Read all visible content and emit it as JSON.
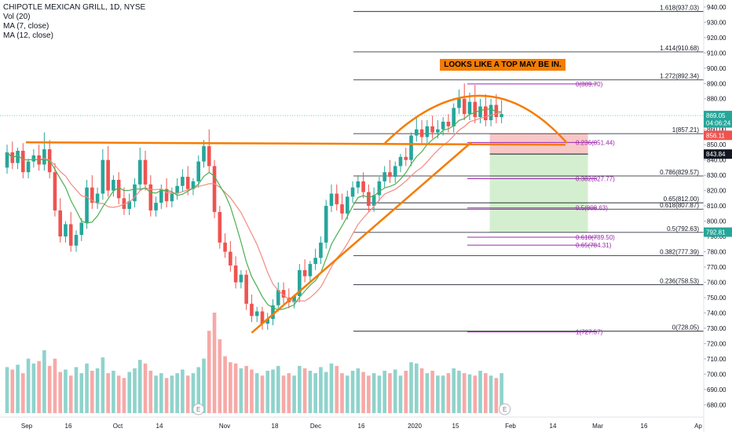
{
  "header": {
    "symbol": "CHIPOTLE MEXICAN GRILL, 1D, NYSE",
    "indicators": [
      "Vol (20)",
      "MA (7, close)",
      "MA (12, close)"
    ]
  },
  "annotation": {
    "text": "LOOKS LIKE A TOP MAY BE IN."
  },
  "colors": {
    "up": "#26a69a",
    "down": "#ef5350",
    "vol_up": "#8fd3cc",
    "vol_down": "#f7a9a7",
    "ma7": "#4caf50",
    "ma12": "#f28b82",
    "trend": "#f57c00",
    "fib": "#131722",
    "fib2": "#9c27b0",
    "stop_zone": "#f8c7c7",
    "target_zone": "#d4efcf"
  },
  "chart_data": {
    "type": "candlestick",
    "title": "CHIPOTLE MEXICAN GRILL, 1D, NYSE",
    "ylim": [
      675,
      942
    ],
    "yticks": [
      680,
      690,
      700,
      710,
      720,
      730,
      740,
      750,
      760,
      770,
      780,
      790,
      800,
      810,
      820,
      830,
      840,
      850,
      860,
      870,
      880,
      890,
      900,
      910,
      920,
      930,
      940
    ],
    "xticks": [
      "Sep",
      "16",
      "Oct",
      "14",
      "Nov",
      "18",
      "Dec",
      "16",
      "2020",
      "15",
      "Feb",
      "14",
      "Mar",
      "16",
      "Ap"
    ],
    "price_labels": [
      {
        "text": "869.05",
        "price": 869.05,
        "color": "#26a69a"
      },
      {
        "text": "04:06:24",
        "price": 864.2,
        "color": "#26a69a"
      },
      {
        "text": "856.11",
        "price": 856.11,
        "color": "#ef5350"
      },
      {
        "text": "843.84",
        "price": 843.84,
        "color": "#131722"
      },
      {
        "text": "792.81",
        "price": 792.81,
        "color": "#26a69a"
      }
    ],
    "fib_right": [
      {
        "label": "1.618(937.03)",
        "price": 937.03
      },
      {
        "label": "1.414(910.68)",
        "price": 910.68
      },
      {
        "label": "1.272(892.34)",
        "price": 892.34
      },
      {
        "label": "1(857.21)",
        "price": 857.21
      },
      {
        "label": "0.786(829.57)",
        "price": 829.57
      },
      {
        "label": "0.65(812.00)",
        "price": 812.0
      },
      {
        "label": "0.618(807.87)",
        "price": 807.87
      },
      {
        "label": "0.5(792.63)",
        "price": 792.63
      },
      {
        "label": "0.382(777.39)",
        "price": 777.39
      },
      {
        "label": "0.236(758.53)",
        "price": 758.53
      },
      {
        "label": "0(728.05)",
        "price": 728.05
      }
    ],
    "fib_purple": [
      {
        "label": "0(889.70)",
        "price": 889.7
      },
      {
        "label": "0.236(851.44)",
        "price": 851.44
      },
      {
        "label": "0.382(827.77)",
        "price": 827.77
      },
      {
        "label": "0.5(808.63)",
        "price": 808.63
      },
      {
        "label": "0.618(789.50)",
        "price": 789.5
      },
      {
        "label": "0.65(784.31)",
        "price": 784.31
      },
      {
        "label": "1(727.57)",
        "price": 727.57
      }
    ],
    "resistance_price": 851.5,
    "events": [
      "E",
      "E"
    ],
    "candles": [
      {
        "o": 835,
        "h": 850,
        "c": 845
      },
      {
        "o": 845,
        "h": 852,
        "c": 838
      },
      {
        "o": 838,
        "h": 848,
        "c": 846
      },
      {
        "o": 846,
        "h": 851,
        "c": 832
      },
      {
        "o": 832,
        "h": 841,
        "c": 839
      },
      {
        "o": 839,
        "h": 847,
        "c": 843
      },
      {
        "o": 843,
        "h": 850,
        "c": 837
      },
      {
        "o": 837,
        "h": 858,
        "c": 847
      },
      {
        "o": 847,
        "h": 853,
        "c": 832
      },
      {
        "o": 832,
        "h": 838,
        "c": 807
      },
      {
        "o": 807,
        "h": 815,
        "c": 790
      },
      {
        "o": 790,
        "h": 800,
        "c": 798
      },
      {
        "o": 798,
        "h": 806,
        "c": 784
      },
      {
        "o": 784,
        "h": 794,
        "c": 791
      },
      {
        "o": 791,
        "h": 802,
        "c": 799
      },
      {
        "o": 799,
        "h": 827,
        "c": 822
      },
      {
        "o": 822,
        "h": 830,
        "c": 812
      },
      {
        "o": 812,
        "h": 822,
        "c": 818
      },
      {
        "o": 818,
        "h": 847,
        "c": 840
      },
      {
        "o": 840,
        "h": 849,
        "c": 820
      },
      {
        "o": 820,
        "h": 830,
        "c": 827
      },
      {
        "o": 827,
        "h": 832,
        "c": 815
      },
      {
        "o": 815,
        "h": 822,
        "c": 808
      },
      {
        "o": 808,
        "h": 818,
        "c": 813
      },
      {
        "o": 813,
        "h": 828,
        "c": 824
      },
      {
        "o": 824,
        "h": 848,
        "c": 840
      },
      {
        "o": 840,
        "h": 846,
        "c": 824
      },
      {
        "o": 824,
        "h": 830,
        "c": 807
      },
      {
        "o": 807,
        "h": 816,
        "c": 812
      },
      {
        "o": 812,
        "h": 824,
        "c": 821
      },
      {
        "o": 821,
        "h": 828,
        "c": 813
      },
      {
        "o": 813,
        "h": 822,
        "c": 818
      },
      {
        "o": 818,
        "h": 828,
        "c": 823
      },
      {
        "o": 823,
        "h": 834,
        "c": 829
      },
      {
        "o": 829,
        "h": 836,
        "c": 821
      },
      {
        "o": 821,
        "h": 828,
        "c": 826
      },
      {
        "o": 826,
        "h": 843,
        "c": 839
      },
      {
        "o": 839,
        "h": 853,
        "c": 849
      },
      {
        "o": 849,
        "h": 860,
        "c": 836
      },
      {
        "o": 836,
        "h": 840,
        "c": 806
      },
      {
        "o": 806,
        "h": 810,
        "c": 786
      },
      {
        "o": 786,
        "h": 792,
        "c": 780
      },
      {
        "o": 780,
        "h": 787,
        "c": 771
      },
      {
        "o": 771,
        "h": 777,
        "c": 760
      },
      {
        "o": 760,
        "h": 768,
        "c": 765
      },
      {
        "o": 765,
        "h": 768,
        "c": 746
      },
      {
        "o": 746,
        "h": 752,
        "c": 738
      },
      {
        "o": 738,
        "h": 744,
        "c": 741
      },
      {
        "o": 741,
        "h": 744,
        "c": 733
      },
      {
        "o": 733,
        "h": 740,
        "c": 736
      },
      {
        "o": 736,
        "h": 749,
        "c": 745
      },
      {
        "o": 745,
        "h": 760,
        "c": 755
      },
      {
        "o": 755,
        "h": 760,
        "c": 750
      },
      {
        "o": 750,
        "h": 756,
        "c": 747
      },
      {
        "o": 747,
        "h": 752,
        "c": 751
      },
      {
        "o": 751,
        "h": 772,
        "c": 768
      },
      {
        "o": 768,
        "h": 775,
        "c": 764
      },
      {
        "o": 764,
        "h": 774,
        "c": 772
      },
      {
        "o": 772,
        "h": 782,
        "c": 776
      },
      {
        "o": 776,
        "h": 790,
        "c": 786
      },
      {
        "o": 786,
        "h": 814,
        "c": 810
      },
      {
        "o": 810,
        "h": 824,
        "c": 818
      },
      {
        "o": 818,
        "h": 824,
        "c": 811
      },
      {
        "o": 811,
        "h": 818,
        "c": 805
      },
      {
        "o": 805,
        "h": 820,
        "c": 816
      },
      {
        "o": 816,
        "h": 826,
        "c": 822
      },
      {
        "o": 822,
        "h": 830,
        "c": 826
      },
      {
        "o": 826,
        "h": 832,
        "c": 819
      },
      {
        "o": 819,
        "h": 824,
        "c": 810
      },
      {
        "o": 810,
        "h": 822,
        "c": 817
      },
      {
        "o": 817,
        "h": 829,
        "c": 826
      },
      {
        "o": 826,
        "h": 836,
        "c": 832
      },
      {
        "o": 832,
        "h": 840,
        "c": 829
      },
      {
        "o": 829,
        "h": 839,
        "c": 836
      },
      {
        "o": 836,
        "h": 844,
        "c": 842
      },
      {
        "o": 842,
        "h": 848,
        "c": 840
      },
      {
        "o": 840,
        "h": 858,
        "c": 856
      },
      {
        "o": 856,
        "h": 868,
        "c": 860
      },
      {
        "o": 860,
        "h": 866,
        "c": 855
      },
      {
        "o": 855,
        "h": 866,
        "c": 862
      },
      {
        "o": 862,
        "h": 869,
        "c": 858
      },
      {
        "o": 858,
        "h": 866,
        "c": 860
      },
      {
        "o": 860,
        "h": 868,
        "c": 865
      },
      {
        "o": 865,
        "h": 870,
        "c": 862
      },
      {
        "o": 862,
        "h": 877,
        "c": 874
      },
      {
        "o": 874,
        "h": 886,
        "c": 880
      },
      {
        "o": 880,
        "h": 890,
        "c": 870
      },
      {
        "o": 870,
        "h": 884,
        "c": 878
      },
      {
        "o": 878,
        "h": 889,
        "c": 868
      },
      {
        "o": 868,
        "h": 880,
        "c": 875
      },
      {
        "o": 875,
        "h": 883,
        "c": 866
      },
      {
        "o": 866,
        "h": 880,
        "c": 876
      },
      {
        "o": 876,
        "h": 883,
        "c": 868
      },
      {
        "o": 868,
        "h": 879,
        "c": 870
      }
    ],
    "volumes": [
      38,
      36,
      40,
      33,
      45,
      41,
      43,
      52,
      39,
      45,
      34,
      36,
      31,
      38,
      33,
      41,
      35,
      37,
      46,
      33,
      35,
      31,
      29,
      34,
      37,
      44,
      41,
      35,
      31,
      33,
      29,
      31,
      33,
      36,
      31,
      33,
      38,
      45,
      68,
      83,
      61,
      47,
      42,
      41,
      37,
      39,
      36,
      33,
      31,
      35,
      36,
      39,
      31,
      33,
      31,
      39,
      37,
      35,
      33,
      38,
      34,
      41,
      39,
      33,
      31,
      35,
      37,
      34,
      31,
      33,
      31,
      35,
      33,
      36,
      31,
      35,
      42,
      41,
      37,
      33,
      35,
      31,
      31,
      33,
      37,
      35,
      33,
      32,
      31,
      35,
      33,
      31,
      29,
      33
    ]
  }
}
